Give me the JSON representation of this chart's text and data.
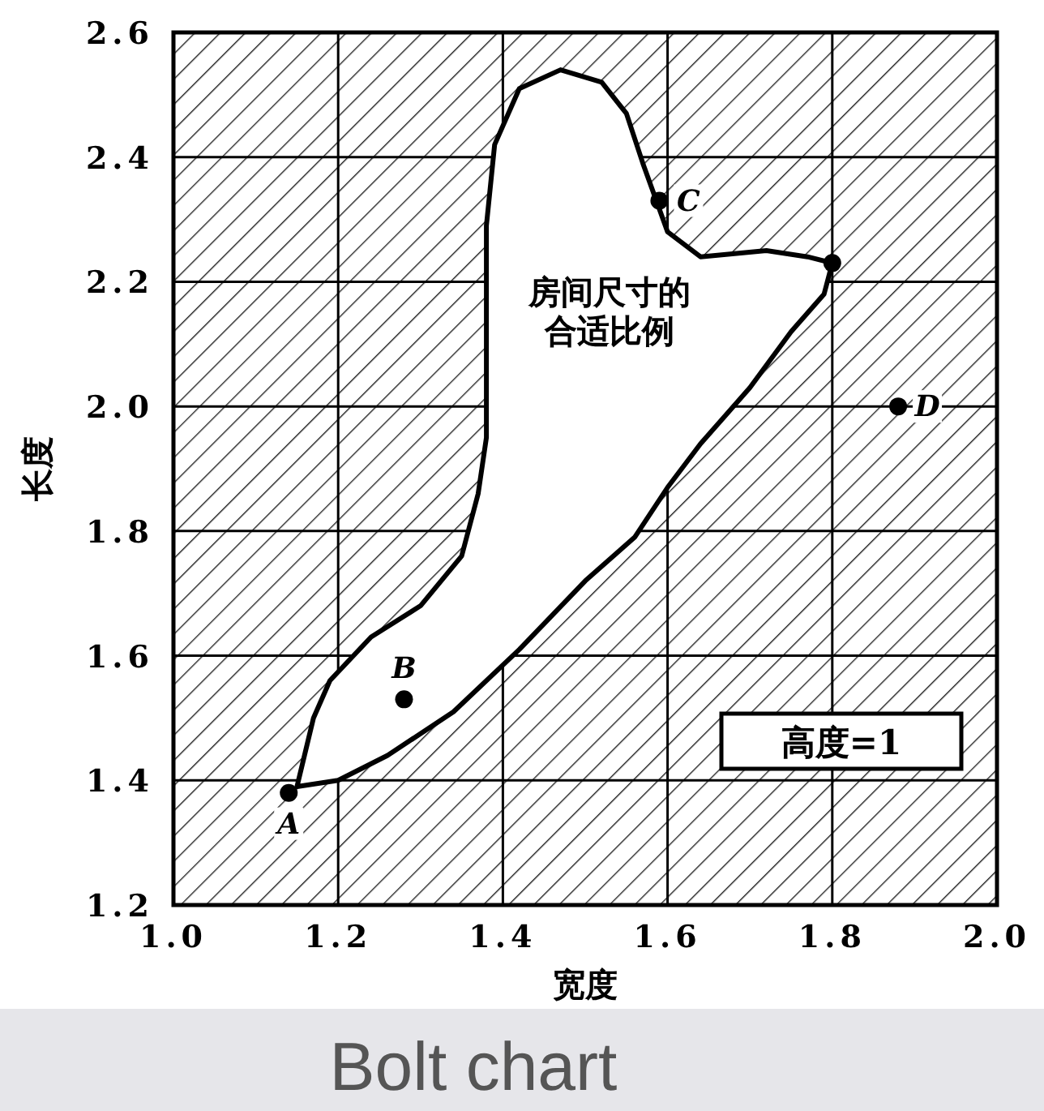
{
  "chart_data": {
    "type": "scatter",
    "xlabel": "宽度",
    "ylabel": "长度",
    "xlim": [
      1.0,
      2.0
    ],
    "ylim": [
      1.2,
      2.6
    ],
    "xticks": [
      {
        "value": 1.0,
        "label": "1.0"
      },
      {
        "value": 1.2,
        "label": "1.2"
      },
      {
        "value": 1.4,
        "label": "1.4"
      },
      {
        "value": 1.6,
        "label": "1.6"
      },
      {
        "value": 1.8,
        "label": "1.8"
      },
      {
        "value": 2.0,
        "label": "2.0"
      }
    ],
    "yticks": [
      {
        "value": 1.2,
        "label": "1.2"
      },
      {
        "value": 1.4,
        "label": "1.4"
      },
      {
        "value": 1.6,
        "label": "1.6"
      },
      {
        "value": 1.8,
        "label": "1.8"
      },
      {
        "value": 2.0,
        "label": "2.0"
      },
      {
        "value": 2.2,
        "label": "2.2"
      },
      {
        "value": 2.4,
        "label": "2.4"
      },
      {
        "value": 2.6,
        "label": "2.6"
      }
    ],
    "grid": true,
    "marker": "circle",
    "series": [
      {
        "color": "#000000",
        "x": [
          1.14,
          1.28,
          1.59,
          1.88,
          1.8
        ],
        "values": [
          1.38,
          1.53,
          2.33,
          2.0,
          2.23
        ]
      }
    ],
    "annotations": [
      {
        "text": "A",
        "x": 1.14,
        "y": 1.38
      },
      {
        "text": "B",
        "x": 1.28,
        "y": 1.53
      },
      {
        "text": "C",
        "x": 1.59,
        "y": 2.33
      },
      {
        "text": "D",
        "x": 1.88,
        "y": 2.0
      },
      "房间尺寸的合适比例",
      "高度=1",
      "Bolt chart"
    ]
  }
}
